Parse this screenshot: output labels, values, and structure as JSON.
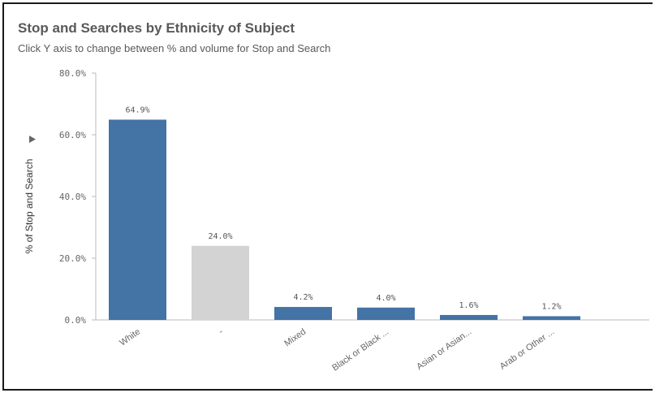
{
  "header": {
    "title": "Stop and Searches by Ethnicity of Subject",
    "subtitle": "Click Y axis to change between % and volume for Stop and Search"
  },
  "colors": {
    "primary_bar": "#4473a5",
    "unknown_bar": "#d3d3d3",
    "axis": "#bbbbbb"
  },
  "icons": {
    "ylabel_toggle": "triangle-right-icon"
  },
  "chart_data": {
    "type": "bar",
    "title": "Stop and Searches by Ethnicity of Subject",
    "ylabel": "% of Stop and Search",
    "xlabel": "",
    "ylim": [
      0,
      80
    ],
    "yticks": [
      "0.0%",
      "20.0%",
      "40.0%",
      "60.0%",
      "80.0%"
    ],
    "ytick_values": [
      0,
      20,
      40,
      60,
      80
    ],
    "categories": [
      "White",
      "-",
      "Mixed",
      "Black or Black ...",
      "Asian or Asian...",
      "Arab or Other ..."
    ],
    "values": [
      64.9,
      24.0,
      4.2,
      4.0,
      1.6,
      1.2
    ],
    "data_labels": [
      "64.9%",
      "24.0%",
      "4.2%",
      "4.0%",
      "1.6%",
      "1.2%"
    ],
    "bar_colors": [
      "#4473a5",
      "#d3d3d3",
      "#4473a5",
      "#4473a5",
      "#4473a5",
      "#4473a5"
    ],
    "grid": false
  }
}
